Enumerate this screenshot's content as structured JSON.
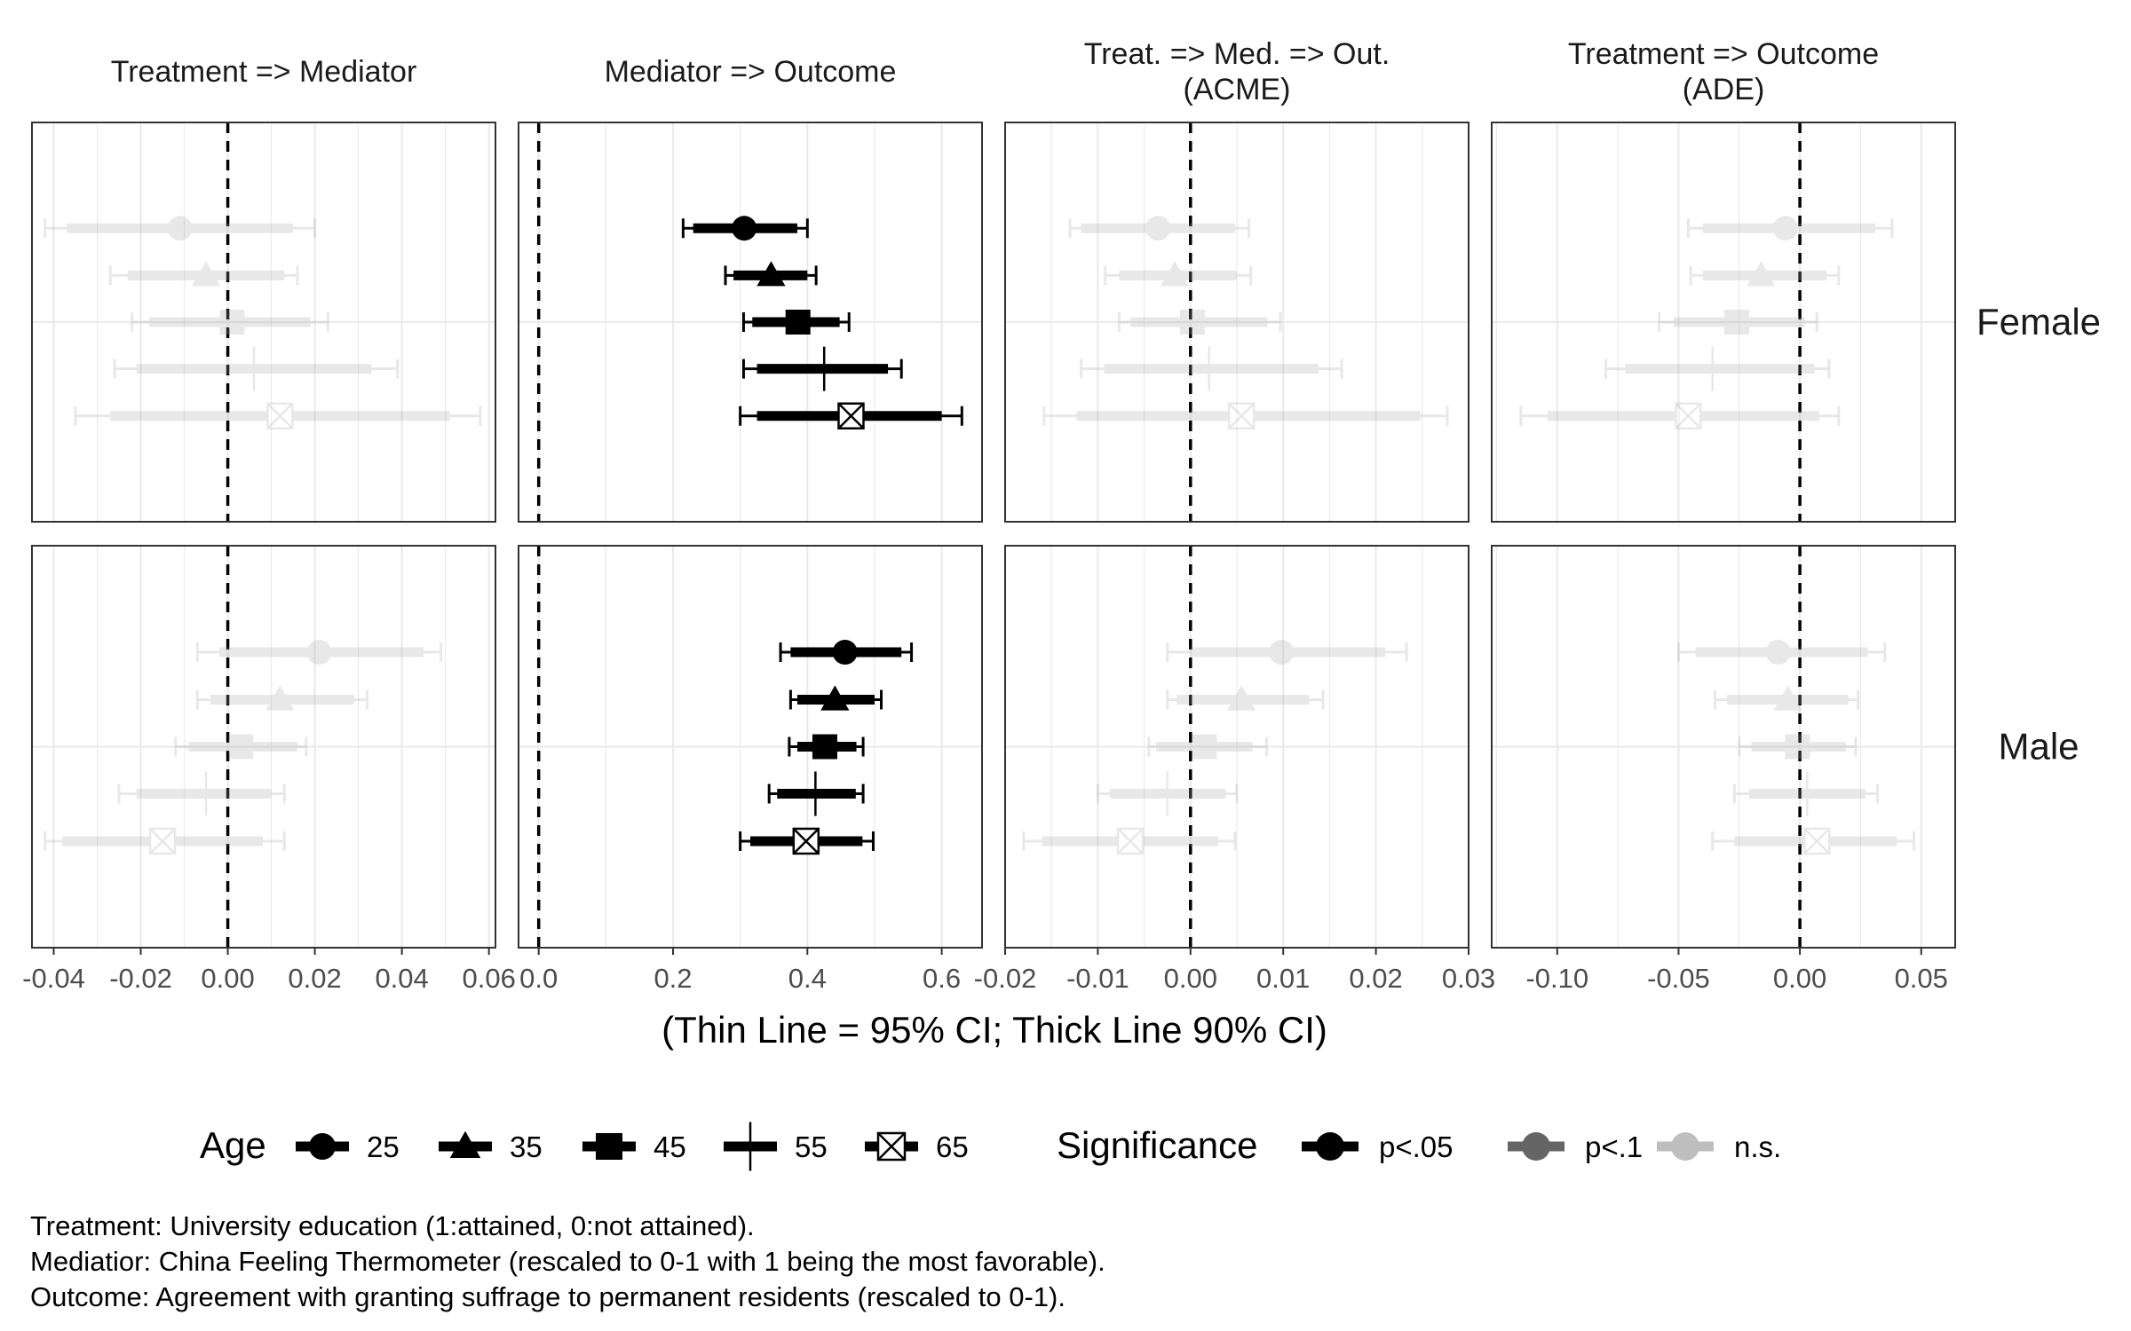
{
  "chart_data": {
    "type": "forest",
    "facet_columns": [
      {
        "title": "Treatment => Mediator",
        "xlim": [
          -0.045,
          0.0615
        ],
        "ticks": [
          -0.04,
          -0.02,
          0.0,
          0.02,
          0.04,
          0.06
        ],
        "tick_labels": [
          "-0.04",
          "-0.02",
          "0.00",
          "0.02",
          "0.04",
          "0.06"
        ]
      },
      {
        "title": "Mediator => Outcome",
        "xlim": [
          -0.03,
          0.66
        ],
        "ticks": [
          0.0,
          0.2,
          0.4,
          0.6
        ],
        "tick_labels": [
          "0.0",
          "0.2",
          "0.4",
          "0.6"
        ]
      },
      {
        "title": "Treat. => Med. => Out.\n(ACME)",
        "xlim": [
          -0.02,
          0.03
        ],
        "ticks": [
          -0.02,
          -0.01,
          0.0,
          0.01,
          0.02,
          0.03
        ],
        "tick_labels": [
          "-0.02",
          "-0.01",
          "0.00",
          "0.01",
          "0.02",
          "0.03"
        ]
      },
      {
        "title": "Treatment => Outcome\n(ADE)",
        "xlim": [
          -0.127,
          0.064
        ],
        "ticks": [
          -0.1,
          -0.05,
          0.0,
          0.05
        ],
        "tick_labels": [
          "-0.10",
          "-0.05",
          "0.00",
          "0.05"
        ]
      }
    ],
    "facet_rows": [
      "Female",
      "Male"
    ],
    "x_label": "(Thin Line = 95% CI; Thick Line 90% CI)",
    "reference_line": 0,
    "grid": true,
    "legend_position": "bottom",
    "legend": {
      "age_title": "Age",
      "age_levels": [
        "25",
        "35",
        "45",
        "55",
        "65"
      ],
      "age_shapes": [
        "circle",
        "triangle",
        "square",
        "plus",
        "boxed-x"
      ],
      "sig_title": "Significance",
      "sig_levels": [
        "p<.05",
        "p<.1",
        "n.s."
      ],
      "sig_alpha": [
        1.0,
        0.6,
        0.25
      ]
    },
    "series": [
      {
        "facet_row": 0,
        "facet_col": 0,
        "points": [
          {
            "age": "25",
            "est": -0.011,
            "lo90": -0.037,
            "hi90": 0.015,
            "lo95": -0.042,
            "hi95": 0.02,
            "sig": "n.s."
          },
          {
            "age": "35",
            "est": -0.005,
            "lo90": -0.023,
            "hi90": 0.013,
            "lo95": -0.027,
            "hi95": 0.016,
            "sig": "n.s."
          },
          {
            "age": "45",
            "est": 0.001,
            "lo90": -0.018,
            "hi90": 0.019,
            "lo95": -0.022,
            "hi95": 0.023,
            "sig": "n.s."
          },
          {
            "age": "55",
            "est": 0.006,
            "lo90": -0.021,
            "hi90": 0.033,
            "lo95": -0.026,
            "hi95": 0.039,
            "sig": "n.s."
          },
          {
            "age": "65",
            "est": 0.012,
            "lo90": -0.027,
            "hi90": 0.051,
            "lo95": -0.035,
            "hi95": 0.058,
            "sig": "n.s."
          }
        ]
      },
      {
        "facet_row": 1,
        "facet_col": 0,
        "points": [
          {
            "age": "25",
            "est": 0.021,
            "lo90": -0.002,
            "hi90": 0.045,
            "lo95": -0.007,
            "hi95": 0.049,
            "sig": "n.s."
          },
          {
            "age": "35",
            "est": 0.012,
            "lo90": -0.004,
            "hi90": 0.029,
            "lo95": -0.007,
            "hi95": 0.032,
            "sig": "n.s."
          },
          {
            "age": "45",
            "est": 0.003,
            "lo90": -0.009,
            "hi90": 0.016,
            "lo95": -0.012,
            "hi95": 0.018,
            "sig": "n.s."
          },
          {
            "age": "55",
            "est": -0.005,
            "lo90": -0.021,
            "hi90": 0.01,
            "lo95": -0.025,
            "hi95": 0.013,
            "sig": "n.s."
          },
          {
            "age": "65",
            "est": -0.015,
            "lo90": -0.038,
            "hi90": 0.008,
            "lo95": -0.042,
            "hi95": 0.013,
            "sig": "n.s."
          }
        ]
      },
      {
        "facet_row": 0,
        "facet_col": 1,
        "points": [
          {
            "age": "25",
            "est": 0.306,
            "lo90": 0.23,
            "hi90": 0.385,
            "lo95": 0.215,
            "hi95": 0.4,
            "sig": "p<.05"
          },
          {
            "age": "35",
            "est": 0.346,
            "lo90": 0.29,
            "hi90": 0.4,
            "lo95": 0.278,
            "hi95": 0.413,
            "sig": "p<.05"
          },
          {
            "age": "45",
            "est": 0.386,
            "lo90": 0.318,
            "hi90": 0.448,
            "lo95": 0.305,
            "hi95": 0.462,
            "sig": "p<.05"
          },
          {
            "age": "55",
            "est": 0.425,
            "lo90": 0.325,
            "hi90": 0.52,
            "lo95": 0.305,
            "hi95": 0.54,
            "sig": "p<.05"
          },
          {
            "age": "65",
            "est": 0.465,
            "lo90": 0.325,
            "hi90": 0.6,
            "lo95": 0.3,
            "hi95": 0.63,
            "sig": "p<.05"
          }
        ]
      },
      {
        "facet_row": 1,
        "facet_col": 1,
        "points": [
          {
            "age": "25",
            "est": 0.456,
            "lo90": 0.375,
            "hi90": 0.54,
            "lo95": 0.36,
            "hi95": 0.555,
            "sig": "p<.05"
          },
          {
            "age": "35",
            "est": 0.441,
            "lo90": 0.385,
            "hi90": 0.5,
            "lo95": 0.375,
            "hi95": 0.51,
            "sig": "p<.05"
          },
          {
            "age": "45",
            "est": 0.426,
            "lo90": 0.385,
            "hi90": 0.473,
            "lo95": 0.373,
            "hi95": 0.483,
            "sig": "p<.05"
          },
          {
            "age": "55",
            "est": 0.412,
            "lo90": 0.355,
            "hi90": 0.472,
            "lo95": 0.343,
            "hi95": 0.483,
            "sig": "p<.05"
          },
          {
            "age": "65",
            "est": 0.398,
            "lo90": 0.315,
            "hi90": 0.482,
            "lo95": 0.3,
            "hi95": 0.498,
            "sig": "p<.05"
          }
        ]
      },
      {
        "facet_row": 0,
        "facet_col": 2,
        "points": [
          {
            "age": "25",
            "est": -0.0035,
            "lo90": -0.0118,
            "hi90": 0.0048,
            "lo95": -0.013,
            "hi95": 0.0063,
            "sig": "n.s."
          },
          {
            "age": "35",
            "est": -0.0017,
            "lo90": -0.0077,
            "hi90": 0.005,
            "lo95": -0.0092,
            "hi95": 0.0065,
            "sig": "n.s."
          },
          {
            "age": "45",
            "est": 0.0002,
            "lo90": -0.0065,
            "hi90": 0.0083,
            "lo95": -0.0077,
            "hi95": 0.0097,
            "sig": "n.s."
          },
          {
            "age": "55",
            "est": 0.002,
            "lo90": -0.0093,
            "hi90": 0.0138,
            "lo95": -0.0118,
            "hi95": 0.0163,
            "sig": "n.s."
          },
          {
            "age": "65",
            "est": 0.0055,
            "lo90": -0.0123,
            "hi90": 0.0248,
            "lo95": -0.0158,
            "hi95": 0.0277,
            "sig": "n.s."
          }
        ]
      },
      {
        "facet_row": 1,
        "facet_col": 2,
        "points": [
          {
            "age": "25",
            "est": 0.0098,
            "lo90": 0.0,
            "hi90": 0.021,
            "lo95": -0.0025,
            "hi95": 0.0233,
            "sig": "n.s."
          },
          {
            "age": "35",
            "est": 0.0055,
            "lo90": -0.0015,
            "hi90": 0.0128,
            "lo95": -0.0025,
            "hi95": 0.0143,
            "sig": "n.s."
          },
          {
            "age": "45",
            "est": 0.0015,
            "lo90": -0.0037,
            "hi90": 0.0067,
            "lo95": -0.0045,
            "hi95": 0.0082,
            "sig": "n.s."
          },
          {
            "age": "55",
            "est": -0.0025,
            "lo90": -0.0087,
            "hi90": 0.0038,
            "lo95": -0.01,
            "hi95": 0.005,
            "sig": "n.s."
          },
          {
            "age": "65",
            "est": -0.0065,
            "lo90": -0.016,
            "hi90": 0.003,
            "lo95": -0.018,
            "hi95": 0.0048,
            "sig": "n.s."
          }
        ]
      },
      {
        "facet_row": 0,
        "facet_col": 3,
        "points": [
          {
            "age": "25",
            "est": -0.006,
            "lo90": -0.04,
            "hi90": 0.031,
            "lo95": -0.046,
            "hi95": 0.038,
            "sig": "n.s."
          },
          {
            "age": "35",
            "est": -0.016,
            "lo90": -0.04,
            "hi90": 0.011,
            "lo95": -0.045,
            "hi95": 0.016,
            "sig": "n.s."
          },
          {
            "age": "45",
            "est": -0.026,
            "lo90": -0.052,
            "hi90": 0.002,
            "lo95": -0.058,
            "hi95": 0.007,
            "sig": "n.s."
          },
          {
            "age": "55",
            "est": -0.036,
            "lo90": -0.072,
            "hi90": 0.006,
            "lo95": -0.08,
            "hi95": 0.012,
            "sig": "n.s."
          },
          {
            "age": "65",
            "est": -0.046,
            "lo90": -0.104,
            "hi90": 0.008,
            "lo95": -0.115,
            "hi95": 0.016,
            "sig": "n.s."
          }
        ]
      },
      {
        "facet_row": 1,
        "facet_col": 3,
        "points": [
          {
            "age": "25",
            "est": -0.009,
            "lo90": -0.043,
            "hi90": 0.028,
            "lo95": -0.05,
            "hi95": 0.035,
            "sig": "n.s."
          },
          {
            "age": "35",
            "est": -0.005,
            "lo90": -0.03,
            "hi90": 0.02,
            "lo95": -0.035,
            "hi95": 0.024,
            "sig": "n.s."
          },
          {
            "age": "45",
            "est": -0.001,
            "lo90": -0.02,
            "hi90": 0.019,
            "lo95": -0.025,
            "hi95": 0.023,
            "sig": "n.s."
          },
          {
            "age": "55",
            "est": 0.003,
            "lo90": -0.021,
            "hi90": 0.027,
            "lo95": -0.027,
            "hi95": 0.032,
            "sig": "n.s."
          },
          {
            "age": "65",
            "est": 0.007,
            "lo90": -0.027,
            "hi90": 0.04,
            "lo95": -0.036,
            "hi95": 0.047,
            "sig": "n.s."
          }
        ]
      }
    ]
  },
  "caption": {
    "line1": "Treatment: University education (1:attained, 0:not attained).",
    "line2": "Mediatior: China Feeling Thermometer (rescaled to 0-1 with 1 being the most favorable).",
    "line3": "Outcome: Agreement with granting suffrage to permanent residents (rescaled to 0-1)."
  }
}
